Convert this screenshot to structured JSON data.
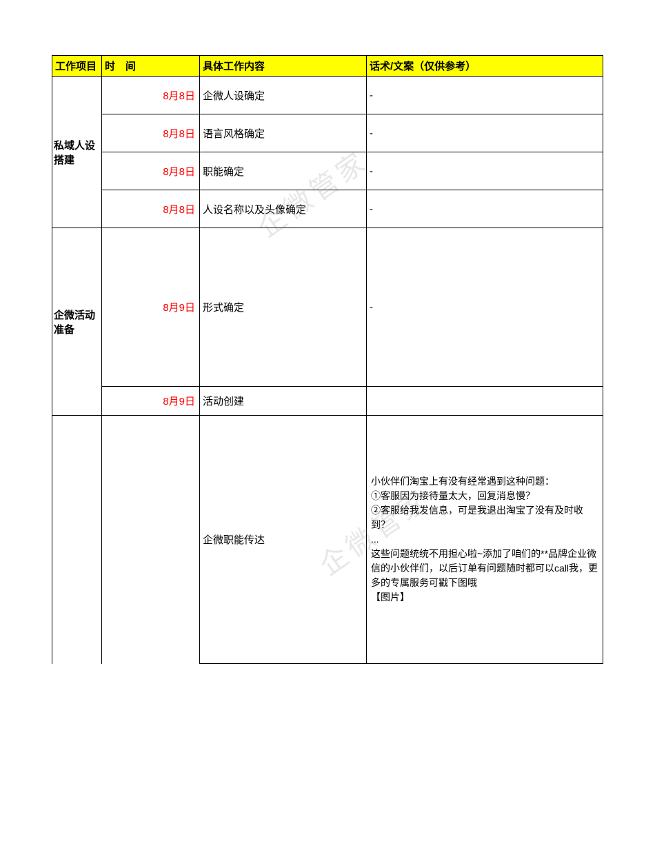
{
  "table": {
    "header": {
      "project": "工作项目",
      "time": "时　间",
      "content": "具体工作内容",
      "script": "话术/文案（仅供参考）"
    },
    "header_bg": "#ffff00",
    "date_color": "#ff0000",
    "border_color": "#000000",
    "sections": [
      {
        "project": "私域人设搭建",
        "rows": [
          {
            "date": "8月8日",
            "content": "企微人设确定",
            "script": "-"
          },
          {
            "date": "8月8日",
            "content": "语言风格确定",
            "script": "-"
          },
          {
            "date": "8月8日",
            "content": "职能确定",
            "script": "-"
          },
          {
            "date": "8月8日",
            "content": "人设名称以及头像确定",
            "script": "-"
          }
        ]
      },
      {
        "project": "企微活动准备",
        "rows": [
          {
            "date": "8月9日",
            "content": "形式确定",
            "script": "-"
          },
          {
            "date": "8月9日",
            "content": "活动创建",
            "script": ""
          }
        ]
      },
      {
        "project": "",
        "rows": [
          {
            "date": "",
            "content": "企微职能传达",
            "script": "小伙伴们淘宝上有没有经常遇到这种问题：\n①客服因为接待量太大，回复消息慢？\n②客服给我发信息，可是我退出淘宝了没有及时收到？\n...\n这些问题统统不用担心啦~添加了咱们的**品牌企业微信的小伙伴们，以后订单有问题随时都可以call我，更多的专属服务可戳下图哦\n【图片】"
          }
        ]
      }
    ]
  },
  "watermark": "企微管家"
}
